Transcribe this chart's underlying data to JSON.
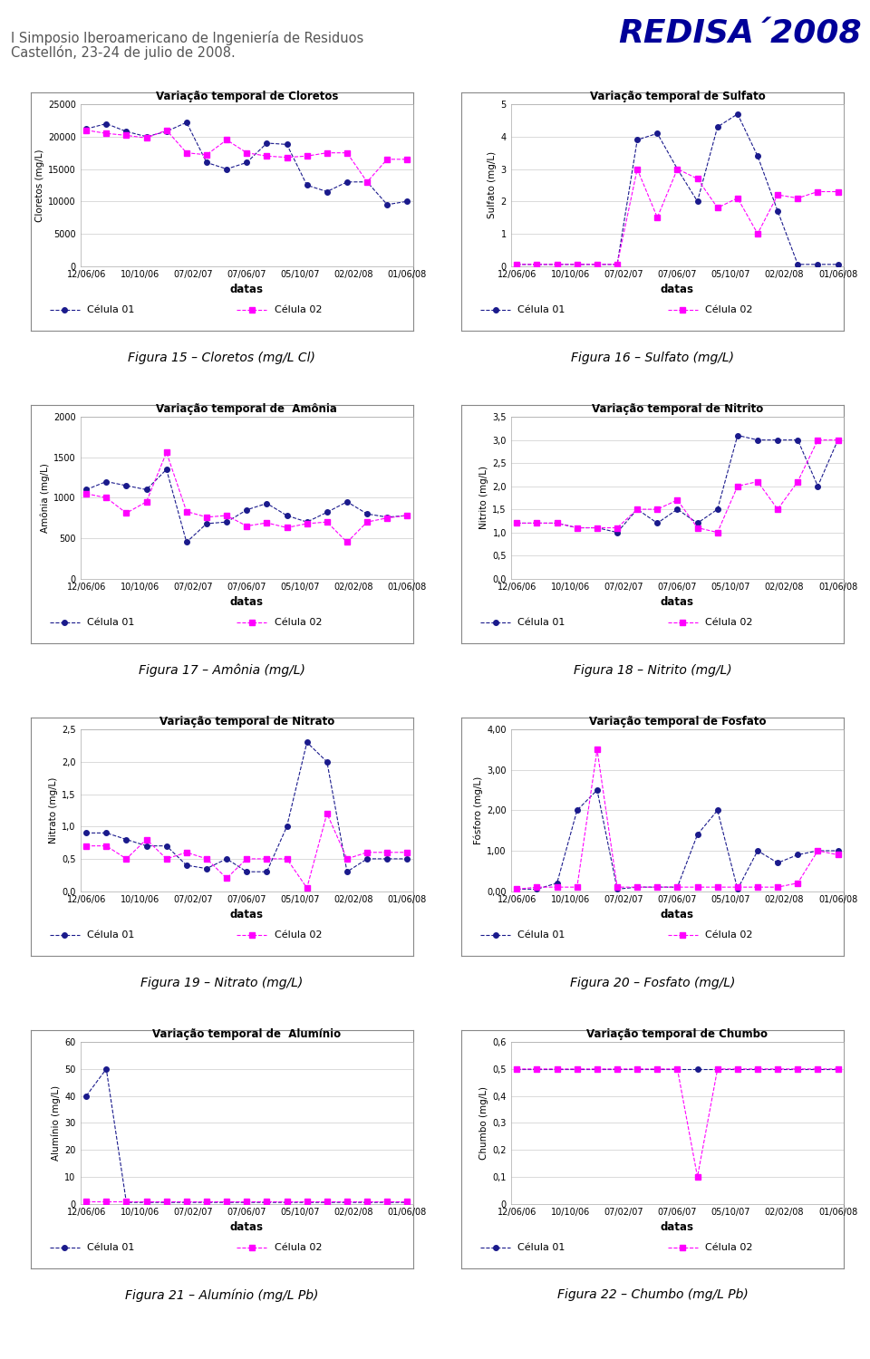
{
  "header_line1": "I Simposio Iberoamericano de Ingeniería de Residuos",
  "header_line2": "Castellón, 23-24 de julio de 2008.",
  "redisa_text": "REDISA´2008",
  "charts": [
    {
      "title": "Variação temporal de Cloretos",
      "ylabel": "Cloretos (mg/L)",
      "figura": "Figura 15 – Cloretos (mg/L Cl)",
      "ylim": [
        0,
        25000
      ],
      "yticks": [
        0,
        5000,
        10000,
        15000,
        20000,
        25000
      ],
      "ytick_labels": [
        "0",
        "5000",
        "10000",
        "15000",
        "20000",
        "25000"
      ],
      "c1_y": [
        21200,
        22000,
        20800,
        20000,
        20800,
        22200,
        16000,
        15000,
        16000,
        19000,
        18800,
        12500,
        11500,
        13000,
        13000,
        9500,
        10000
      ],
      "c2_y": [
        21000,
        20500,
        20200,
        19800,
        21000,
        17500,
        17200,
        19500,
        17500,
        17000,
        16800,
        17000,
        17500,
        17500,
        13000,
        16500,
        16500
      ]
    },
    {
      "title": "Variação temporal de Sulfato",
      "ylabel": "Sulfato (mg/L)",
      "figura": "Figura 16 – Sulfato (mg/L)",
      "ylim": [
        0,
        5
      ],
      "yticks": [
        0,
        1,
        2,
        3,
        4,
        5
      ],
      "ytick_labels": [
        "0",
        "1",
        "2",
        "3",
        "4",
        "5"
      ],
      "c1_y": [
        0.05,
        0.05,
        0.05,
        0.05,
        0.05,
        0.05,
        3.9,
        4.1,
        3.0,
        2.0,
        4.3,
        4.7,
        3.4,
        1.7,
        0.05,
        0.05,
        0.05
      ],
      "c2_y": [
        0.05,
        0.05,
        0.05,
        0.05,
        0.05,
        0.05,
        3.0,
        1.5,
        3.0,
        2.7,
        1.8,
        2.1,
        1.0,
        2.2,
        2.1,
        2.3,
        2.3
      ]
    },
    {
      "title": "Variação temporal de  Amônia",
      "ylabel": "Amônia (mg/L)",
      "figura": "Figura 17 – Amônia (mg/L)",
      "ylim": [
        0,
        2000
      ],
      "yticks": [
        0,
        500,
        1000,
        1500,
        2000
      ],
      "ytick_labels": [
        "0",
        "500",
        "1000",
        "1500",
        "2000"
      ],
      "c1_y": [
        1100,
        1200,
        1150,
        1100,
        1350,
        450,
        680,
        700,
        850,
        930,
        780,
        700,
        820,
        950,
        800,
        760,
        780
      ],
      "c2_y": [
        1050,
        1000,
        810,
        950,
        1560,
        830,
        760,
        780,
        650,
        690,
        630,
        680,
        700,
        450,
        700,
        750,
        780
      ]
    },
    {
      "title": "Variação temporal de Nitrito",
      "ylabel": "Nitrito (mg/L)",
      "figura": "Figura 18 – Nitrito (mg/L)",
      "ylim": [
        0.0,
        3.5
      ],
      "yticks": [
        0.0,
        0.5,
        1.0,
        1.5,
        2.0,
        2.5,
        3.0,
        3.5
      ],
      "ytick_labels": [
        "0,0",
        "0,5",
        "1,0",
        "1,5",
        "2,0",
        "2,5",
        "3,0",
        "3,5"
      ],
      "c1_y": [
        1.2,
        1.2,
        1.2,
        1.1,
        1.1,
        1.0,
        1.5,
        1.2,
        1.5,
        1.2,
        1.5,
        3.1,
        3.0,
        3.0,
        3.0,
        2.0,
        3.0
      ],
      "c2_y": [
        1.2,
        1.2,
        1.2,
        1.1,
        1.1,
        1.1,
        1.5,
        1.5,
        1.7,
        1.1,
        1.0,
        2.0,
        2.1,
        1.5,
        2.1,
        3.0,
        3.0
      ]
    },
    {
      "title": "Variação temporal de Nitrato",
      "ylabel": "Nitrato (mg/L)",
      "figura": "Figura 19 – Nitrato (mg/L)",
      "ylim": [
        0.0,
        2.5
      ],
      "yticks": [
        0.0,
        0.5,
        1.0,
        1.5,
        2.0,
        2.5
      ],
      "ytick_labels": [
        "0,0",
        "0,5",
        "1,0",
        "1,5",
        "2,0",
        "2,5"
      ],
      "c1_y": [
        0.9,
        0.9,
        0.8,
        0.7,
        0.7,
        0.4,
        0.35,
        0.5,
        0.3,
        0.3,
        1.0,
        2.3,
        2.0,
        0.3,
        0.5,
        0.5,
        0.5
      ],
      "c2_y": [
        0.7,
        0.7,
        0.5,
        0.8,
        0.5,
        0.6,
        0.5,
        0.2,
        0.5,
        0.5,
        0.5,
        0.05,
        1.2,
        0.5,
        0.6,
        0.6,
        0.6
      ]
    },
    {
      "title": "Variação temporal de Fosfato",
      "ylabel": "Fósforo (mg/L)",
      "figura": "Figura 20 – Fosfato (mg/L)",
      "ylim": [
        0.0,
        4.0
      ],
      "yticks": [
        0.0,
        1.0,
        2.0,
        3.0,
        4.0
      ],
      "ytick_labels": [
        "0,00",
        "1,00",
        "2,00",
        "3,00",
        "4,00"
      ],
      "c1_y": [
        0.05,
        0.05,
        0.2,
        2.0,
        2.5,
        0.05,
        0.1,
        0.1,
        0.1,
        1.4,
        2.0,
        0.05,
        1.0,
        0.7,
        0.9,
        1.0,
        1.0
      ],
      "c2_y": [
        0.05,
        0.1,
        0.1,
        0.1,
        3.5,
        0.1,
        0.1,
        0.1,
        0.1,
        0.1,
        0.1,
        0.1,
        0.1,
        0.1,
        0.2,
        1.0,
        0.9
      ]
    },
    {
      "title": "Variação temporal de  Alumínio",
      "ylabel": "Alumínio (mg/L)",
      "figura": "Figura 21 – Alumínio (mg/L Pb)",
      "ylim": [
        0,
        60
      ],
      "yticks": [
        0,
        10,
        20,
        30,
        40,
        50,
        60
      ],
      "ytick_labels": [
        "0",
        "10",
        "20",
        "30",
        "40",
        "50",
        "60"
      ],
      "c1_y": [
        40,
        50,
        0.5,
        0.5,
        0.5,
        0.5,
        0.5,
        0.5,
        0.5,
        0.5,
        0.5,
        0.5,
        0.5,
        0.5,
        0.5,
        0.5,
        0.5
      ],
      "c2_y": [
        1,
        1,
        1,
        1,
        1,
        1,
        1,
        1,
        1,
        1,
        1,
        1,
        1,
        1,
        1,
        1,
        1
      ]
    },
    {
      "title": "Variação temporal de Chumbo",
      "ylabel": "Chumbo (mg/L)",
      "figura": "Figura 22 – Chumbo (mg/L Pb)",
      "ylim": [
        0,
        0.6
      ],
      "yticks": [
        0,
        0.1,
        0.2,
        0.3,
        0.4,
        0.5,
        0.6
      ],
      "ytick_labels": [
        "0",
        "0,1",
        "0,2",
        "0,3",
        "0,4",
        "0,5",
        "0,6"
      ],
      "c1_y": [
        0.5,
        0.5,
        0.5,
        0.5,
        0.5,
        0.5,
        0.5,
        0.5,
        0.5,
        0.5,
        0.5,
        0.5,
        0.5,
        0.5,
        0.5,
        0.5,
        0.5
      ],
      "c2_y": [
        0.5,
        0.5,
        0.5,
        0.5,
        0.5,
        0.5,
        0.5,
        0.5,
        0.5,
        0.1,
        0.5,
        0.5,
        0.5,
        0.5,
        0.5,
        0.5,
        0.5
      ]
    }
  ],
  "x_labels": [
    "12/06/06",
    "10/10/06",
    "07/02/07",
    "07/06/07",
    "05/10/07",
    "02/02/08",
    "01/06/08"
  ],
  "color_c1": "#1a1a8c",
  "color_c2": "#ff00ff",
  "legend_c1": "Célula 01",
  "legend_c2": "Célula 02",
  "marker_c1": "o",
  "marker_c2": "s"
}
